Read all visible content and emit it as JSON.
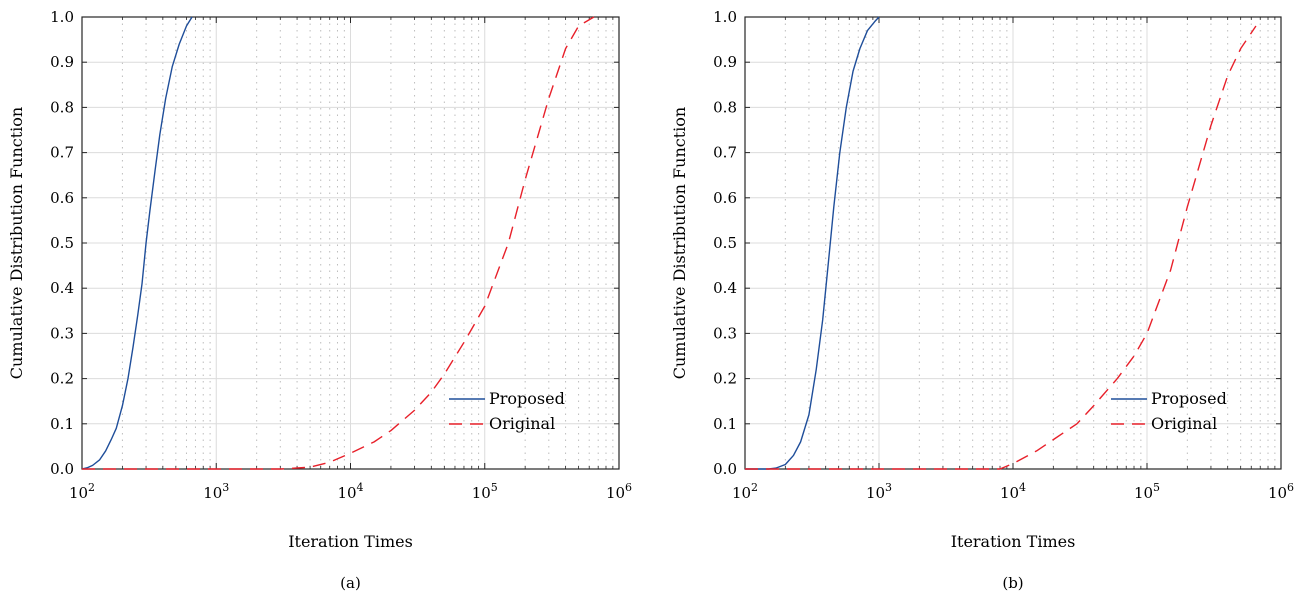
{
  "chart_data": [
    {
      "type": "line",
      "panel_label": "(a)",
      "xlabel": "Iteration Times",
      "ylabel": "Cumulative Distribution Function",
      "xscale": "log",
      "xlim": [
        100,
        1000000
      ],
      "ylim": [
        0,
        1
      ],
      "x_tick_labels": [
        {
          "base": "10",
          "exp": "2"
        },
        {
          "base": "10",
          "exp": "3"
        },
        {
          "base": "10",
          "exp": "4"
        },
        {
          "base": "10",
          "exp": "5"
        },
        {
          "base": "10",
          "exp": "6"
        }
      ],
      "y_tick_labels": [
        "0.0",
        "0.1",
        "0.2",
        "0.3",
        "0.4",
        "0.5",
        "0.6",
        "0.7",
        "0.8",
        "0.9",
        "1.0"
      ],
      "grid": true,
      "legend_position": "bottom-right",
      "series": [
        {
          "name": "Proposed",
          "style": "solid",
          "color": "#1f4e9a",
          "points": [
            [
              100,
              0
            ],
            [
              110,
              0.003
            ],
            [
              120,
              0.008
            ],
            [
              135,
              0.02
            ],
            [
              150,
              0.04
            ],
            [
              165,
              0.065
            ],
            [
              180,
              0.09
            ],
            [
              200,
              0.14
            ],
            [
              220,
              0.2
            ],
            [
              240,
              0.27
            ],
            [
              260,
              0.34
            ],
            [
              280,
              0.41
            ],
            [
              300,
              0.5
            ],
            [
              320,
              0.57
            ],
            [
              350,
              0.66
            ],
            [
              380,
              0.74
            ],
            [
              420,
              0.82
            ],
            [
              470,
              0.89
            ],
            [
              530,
              0.94
            ],
            [
              600,
              0.98
            ],
            [
              660,
              1.0
            ]
          ]
        },
        {
          "name": "Original",
          "style": "dashed",
          "color": "#e8202a",
          "points": [
            [
              100,
              0
            ],
            [
              1000,
              0
            ],
            [
              3000,
              0
            ],
            [
              5000,
              0.004
            ],
            [
              7000,
              0.015
            ],
            [
              10000,
              0.035
            ],
            [
              15000,
              0.06
            ],
            [
              20000,
              0.085
            ],
            [
              30000,
              0.13
            ],
            [
              40000,
              0.17
            ],
            [
              50000,
              0.21
            ],
            [
              70000,
              0.28
            ],
            [
              100000,
              0.36
            ],
            [
              150000,
              0.5
            ],
            [
              200000,
              0.64
            ],
            [
              300000,
              0.82
            ],
            [
              400000,
              0.93
            ],
            [
              500000,
              0.98
            ],
            [
              650000,
              1.0
            ]
          ]
        }
      ]
    },
    {
      "type": "line",
      "panel_label": "(b)",
      "xlabel": "Iteration Times",
      "ylabel": "Cumulative Distribution Function",
      "xscale": "log",
      "xlim": [
        100,
        1000000
      ],
      "ylim": [
        0,
        1
      ],
      "x_tick_labels": [
        {
          "base": "10",
          "exp": "2"
        },
        {
          "base": "10",
          "exp": "3"
        },
        {
          "base": "10",
          "exp": "4"
        },
        {
          "base": "10",
          "exp": "5"
        },
        {
          "base": "10",
          "exp": "6"
        }
      ],
      "y_tick_labels": [
        "0.0",
        "0.1",
        "0.2",
        "0.3",
        "0.4",
        "0.5",
        "0.6",
        "0.7",
        "0.8",
        "0.9",
        "1.0"
      ],
      "grid": true,
      "legend_position": "bottom-right",
      "series": [
        {
          "name": "Proposed",
          "style": "solid",
          "color": "#1f4e9a",
          "points": [
            [
              100,
              0
            ],
            [
              150,
              0
            ],
            [
              170,
              0.002
            ],
            [
              200,
              0.01
            ],
            [
              230,
              0.03
            ],
            [
              260,
              0.06
            ],
            [
              300,
              0.12
            ],
            [
              340,
              0.22
            ],
            [
              380,
              0.33
            ],
            [
              420,
              0.46
            ],
            [
              460,
              0.58
            ],
            [
              510,
              0.7
            ],
            [
              570,
              0.8
            ],
            [
              640,
              0.88
            ],
            [
              720,
              0.93
            ],
            [
              820,
              0.97
            ],
            [
              930,
              0.99
            ],
            [
              1000,
              1.0
            ]
          ]
        },
        {
          "name": "Original",
          "style": "dashed",
          "color": "#e8202a",
          "points": [
            [
              100,
              0
            ],
            [
              1000,
              0
            ],
            [
              5000,
              0
            ],
            [
              8000,
              0
            ],
            [
              10000,
              0.012
            ],
            [
              15000,
              0.04
            ],
            [
              20000,
              0.065
            ],
            [
              30000,
              0.1
            ],
            [
              40000,
              0.14
            ],
            [
              60000,
              0.2
            ],
            [
              80000,
              0.25
            ],
            [
              100000,
              0.3
            ],
            [
              150000,
              0.44
            ],
            [
              200000,
              0.58
            ],
            [
              300000,
              0.76
            ],
            [
              400000,
              0.87
            ],
            [
              500000,
              0.93
            ],
            [
              650000,
              0.98
            ]
          ]
        }
      ]
    }
  ]
}
